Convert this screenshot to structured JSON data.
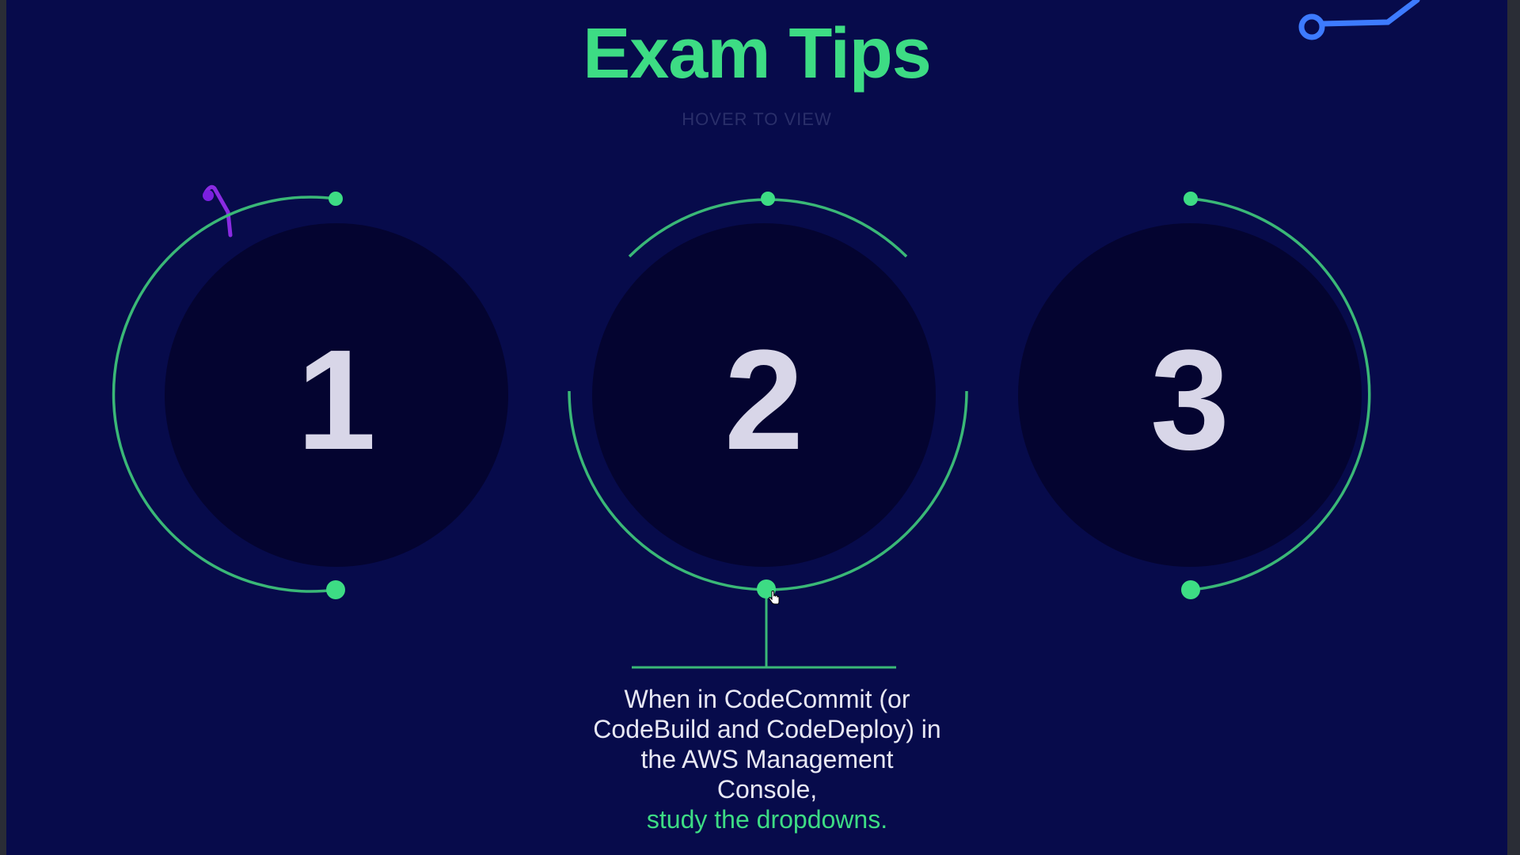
{
  "colors": {
    "background": "#070b4b",
    "circle_fill": "#040430",
    "accent_green": "#3ddc84",
    "ring_green": "#3ab877",
    "digit_color": "#d8d6e8",
    "subtitle_color": "#2a2f6a",
    "text_color": "#e8e8f4",
    "scribble_purple": "#8a2be2",
    "scribble_blue": "#3d7bff"
  },
  "header": {
    "title": "Exam Tips",
    "subtitle": "HOVER TO VIEW"
  },
  "tips": [
    {
      "number": "1"
    },
    {
      "number": "2"
    },
    {
      "number": "3"
    }
  ],
  "active_tip": {
    "text": "When in CodeCommit (or CodeBuild and CodeDeploy) in the AWS Management Console,",
    "highlight": "study the dropdowns."
  },
  "icons": {
    "cursor": "hand-pointer-icon",
    "decoration_top_right": "circuit-node-icon",
    "decoration_top_left": "pen-stroke-icon"
  }
}
